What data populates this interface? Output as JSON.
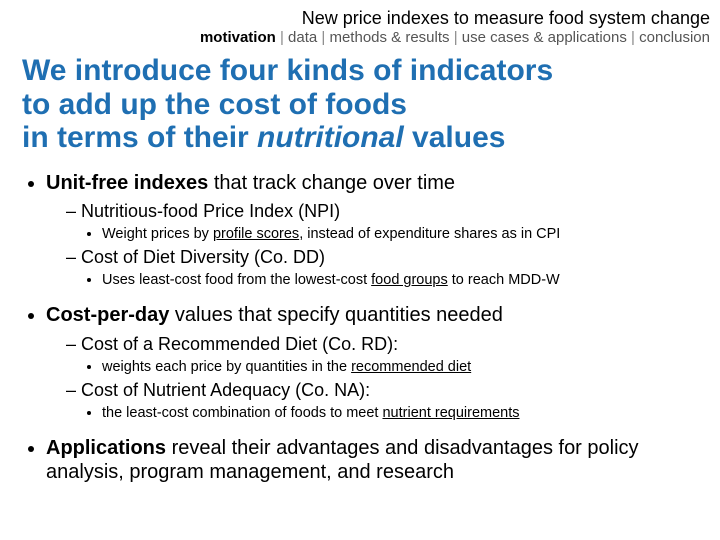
{
  "header": {
    "title": "New price indexes to measure food system change",
    "breadcrumb": {
      "active": "motivation",
      "items": [
        "data",
        "methods & results",
        "use cases & applications",
        "conclusion"
      ],
      "sep": " | "
    }
  },
  "heading": {
    "line1": "We introduce four kinds of indicators",
    "line2": "to add up the cost of foods",
    "line3_a": "in terms of their ",
    "line3_em": "nutritional",
    "line3_b": " values"
  },
  "bullets": {
    "b1": {
      "lead": "Unit-free indexes",
      "rest": " that track change over time",
      "d1": {
        "text": "Nutritious-food Price Index (NPI)",
        "sub_a": "Weight prices by ",
        "sub_u": "profile scores",
        "sub_b": ", instead of expenditure shares as in CPI"
      },
      "d2": {
        "text": "Cost of Diet Diversity (Co. DD)",
        "sub_a": "Uses least-cost food from the lowest-cost ",
        "sub_u": "food groups",
        "sub_b": " to reach MDD-W"
      }
    },
    "b2": {
      "lead": "Cost-per-day",
      "rest": " values that specify quantities needed",
      "d1": {
        "text": "Cost of a Recommended Diet (Co. RD):",
        "sub_a": "weights each price by quantities in the ",
        "sub_u": "recommended diet",
        "sub_b": ""
      },
      "d2": {
        "text": "Cost of Nutrient Adequacy (Co. NA):",
        "sub_a": "the least-cost combination of foods to meet ",
        "sub_u": "nutrient requirements",
        "sub_b": ""
      }
    },
    "b3": {
      "lead": "Applications",
      "rest": " reveal their advantages and disadvantages for policy analysis, program management, and research"
    }
  },
  "colors": {
    "heading": "#1f6fb2",
    "text": "#000000",
    "bg": "#ffffff"
  }
}
